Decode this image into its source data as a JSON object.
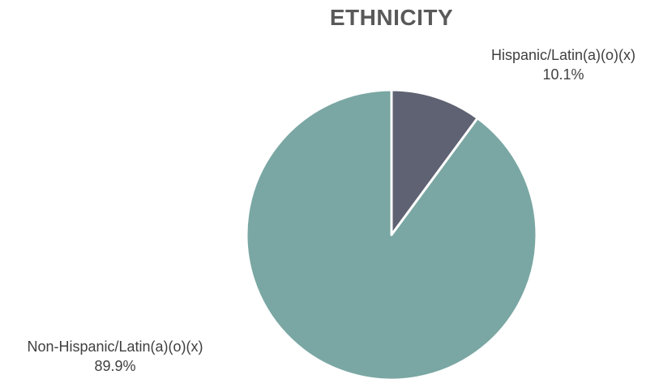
{
  "chart_data": {
    "type": "pie",
    "title": "ETHNICITY",
    "slices": [
      {
        "label": "Hispanic/Latin(a)(o)(x)",
        "value": 10.1,
        "display": "10.1%",
        "color": "#5f6272"
      },
      {
        "label": "Non-Hispanic/Latin(a)(o)(x)",
        "value": 89.9,
        "display": "89.9%",
        "color": "#7aa7a3"
      }
    ],
    "start_angle": "12 o'clock",
    "direction": "clockwise",
    "slice_border_color": "#ffffff",
    "legend": "none"
  }
}
